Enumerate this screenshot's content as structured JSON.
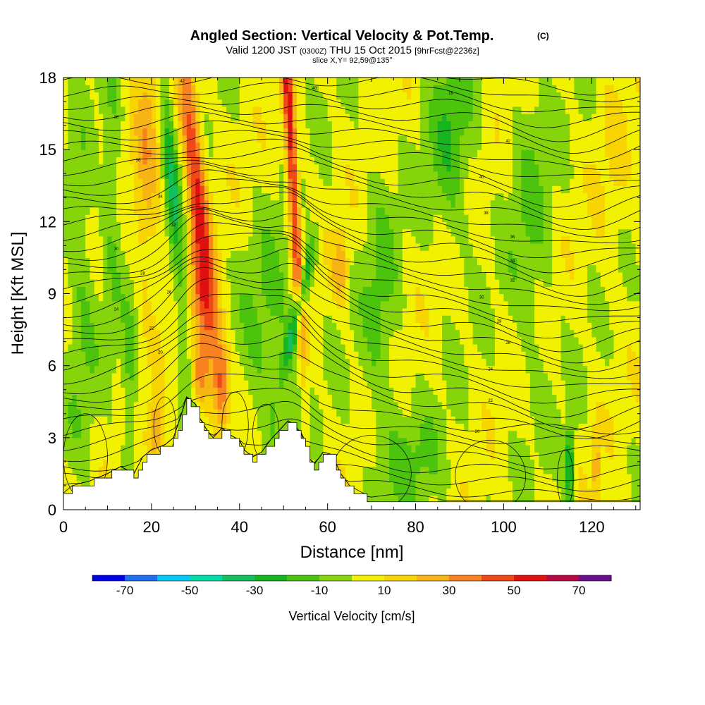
{
  "chart_data": {
    "type": "heatmap",
    "title": {
      "main": "Angled Section: Vertical Velocity & Pot.Temp.",
      "unit": "(C)"
    },
    "subtitle": {
      "valid": "Valid 1200 JST",
      "utc": "(0300Z)",
      "date": "THU 15 Oct 2015",
      "forecast": "[9hrFcst@2236z]",
      "slice": "slice X,Y= 92,59@135°"
    },
    "xlabel": "Distance [nm]",
    "ylabel": "Height [Kft MSL]",
    "xlim": [
      0,
      131
    ],
    "ylim": [
      0,
      18
    ],
    "x_ticks": [
      "0",
      "20",
      "40",
      "60",
      "80",
      "100",
      "120"
    ],
    "y_ticks": [
      "0",
      "3",
      "6",
      "9",
      "12",
      "15",
      "18"
    ],
    "colorbar": {
      "label": "Vertical Velocity [cm/s]",
      "tick_labels": [
        "-70",
        "-50",
        "-30",
        "-10",
        "10",
        "30",
        "50",
        "70"
      ],
      "boundaries": [
        -80,
        -70,
        -60,
        -50,
        -40,
        -30,
        -20,
        -10,
        0,
        10,
        20,
        30,
        40,
        50,
        60,
        70,
        80
      ],
      "colors": [
        "#0000e8",
        "#1f6ef0",
        "#00c8f8",
        "#00dca8",
        "#12c060",
        "#16b41e",
        "#4cc40e",
        "#86d40a",
        "#f2f200",
        "#f8d400",
        "#f8b414",
        "#f88220",
        "#f04818",
        "#e01010",
        "#b80848",
        "#6a108a"
      ]
    },
    "terrain_profile": [
      {
        "x": 0,
        "h": 0.6
      },
      {
        "x": 2,
        "h": 0.9
      },
      {
        "x": 6,
        "h": 1.1
      },
      {
        "x": 10,
        "h": 1.4
      },
      {
        "x": 13,
        "h": 1.7
      },
      {
        "x": 16,
        "h": 1.4
      },
      {
        "x": 18,
        "h": 2.1
      },
      {
        "x": 20,
        "h": 2.4
      },
      {
        "x": 23,
        "h": 2.6
      },
      {
        "x": 25,
        "h": 2.9
      },
      {
        "x": 27,
        "h": 4.0
      },
      {
        "x": 28,
        "h": 4.6
      },
      {
        "x": 30,
        "h": 4.3
      },
      {
        "x": 31,
        "h": 3.7
      },
      {
        "x": 33,
        "h": 3.1
      },
      {
        "x": 34,
        "h": 2.9
      },
      {
        "x": 36,
        "h": 3.3
      },
      {
        "x": 38,
        "h": 3.0
      },
      {
        "x": 40,
        "h": 2.8
      },
      {
        "x": 41,
        "h": 2.4
      },
      {
        "x": 43,
        "h": 2.1
      },
      {
        "x": 45,
        "h": 2.3
      },
      {
        "x": 47,
        "h": 2.8
      },
      {
        "x": 49,
        "h": 3.2
      },
      {
        "x": 51,
        "h": 3.6
      },
      {
        "x": 52,
        "h": 3.5
      },
      {
        "x": 54,
        "h": 3.1
      },
      {
        "x": 56,
        "h": 2.0
      },
      {
        "x": 57,
        "h": 1.8
      },
      {
        "x": 59,
        "h": 2.3
      },
      {
        "x": 61,
        "h": 2.2
      },
      {
        "x": 63,
        "h": 1.4
      },
      {
        "x": 65,
        "h": 0.9
      },
      {
        "x": 68,
        "h": 0.6
      },
      {
        "x": 70,
        "h": 0.3
      },
      {
        "x": 73,
        "h": 0.3
      },
      {
        "x": 131,
        "h": 0.3
      }
    ],
    "velocity_features": [
      {
        "x": 30,
        "y": 14,
        "sx": 1.6,
        "sy": 4.5,
        "v": 48,
        "tilt": -0.18
      },
      {
        "x": 32,
        "y": 8.5,
        "sx": 2.2,
        "sy": 2.0,
        "v": 30,
        "tilt": -0.25
      },
      {
        "x": 52,
        "y": 14,
        "sx": 0.9,
        "sy": 5.5,
        "v": 55,
        "tilt": -0.1
      },
      {
        "x": 53.5,
        "y": 8.5,
        "sx": 1.0,
        "sy": 2.0,
        "v": -40,
        "tilt": 0.4
      },
      {
        "x": 25,
        "y": 13,
        "sx": 1.2,
        "sy": 5.0,
        "v": -30,
        "tilt": -0.15
      },
      {
        "x": 36,
        "y": 5.2,
        "sx": 1.3,
        "sy": 1.2,
        "v": 35,
        "tilt": 0
      },
      {
        "x": 31,
        "y": 5.5,
        "sx": 1.5,
        "sy": 1.0,
        "v": 28,
        "tilt": 0
      },
      {
        "x": 47,
        "y": 6.8,
        "sx": 4.5,
        "sy": 3.5,
        "v": -16,
        "tilt": 0
      },
      {
        "x": 19,
        "y": 14,
        "sx": 2.2,
        "sy": 3.5,
        "v": 22,
        "tilt": 0
      },
      {
        "x": 15,
        "y": 5,
        "sx": 1.2,
        "sy": 2.5,
        "v": -18,
        "tilt": 0
      },
      {
        "x": 11,
        "y": 13,
        "sx": 1.5,
        "sy": 4.0,
        "v": -14,
        "tilt": 0
      },
      {
        "x": 88,
        "y": 15.5,
        "sx": 3.5,
        "sy": 3.0,
        "v": -20,
        "tilt": 0
      },
      {
        "x": 72,
        "y": 8.5,
        "sx": 3.0,
        "sy": 4.0,
        "v": -14,
        "tilt": 0
      },
      {
        "x": 115,
        "y": 1.8,
        "sx": 0.8,
        "sy": 1.2,
        "v": -40,
        "tilt": 0
      },
      {
        "x": 121,
        "y": 1.8,
        "sx": 0.6,
        "sy": 1.2,
        "v": 24,
        "tilt": 0
      },
      {
        "x": 63,
        "y": 10,
        "sx": 1.2,
        "sy": 1.0,
        "v": 24,
        "tilt": 0
      },
      {
        "x": 106,
        "y": 12,
        "sx": 3.5,
        "sy": 5.0,
        "v": -12,
        "tilt": 0
      },
      {
        "x": 79,
        "y": 2.0,
        "sx": 6.0,
        "sy": 1.5,
        "v": -13,
        "tilt": 0
      },
      {
        "x": 125,
        "y": 15,
        "sx": 3.0,
        "sy": 4.0,
        "v": 6,
        "tilt": 0
      },
      {
        "x": 21,
        "y": 3.2,
        "sx": 1.3,
        "sy": 0.9,
        "v": 30,
        "tilt": 0
      },
      {
        "x": 4,
        "y": 9,
        "sx": 2.5,
        "sy": 4.5,
        "v": -14,
        "tilt": 0
      }
    ],
    "isentrope_labels": [
      "42",
      "40",
      "38",
      "36",
      "34",
      "32",
      "30",
      "28",
      "26",
      "24",
      "22",
      "20",
      "18"
    ]
  }
}
